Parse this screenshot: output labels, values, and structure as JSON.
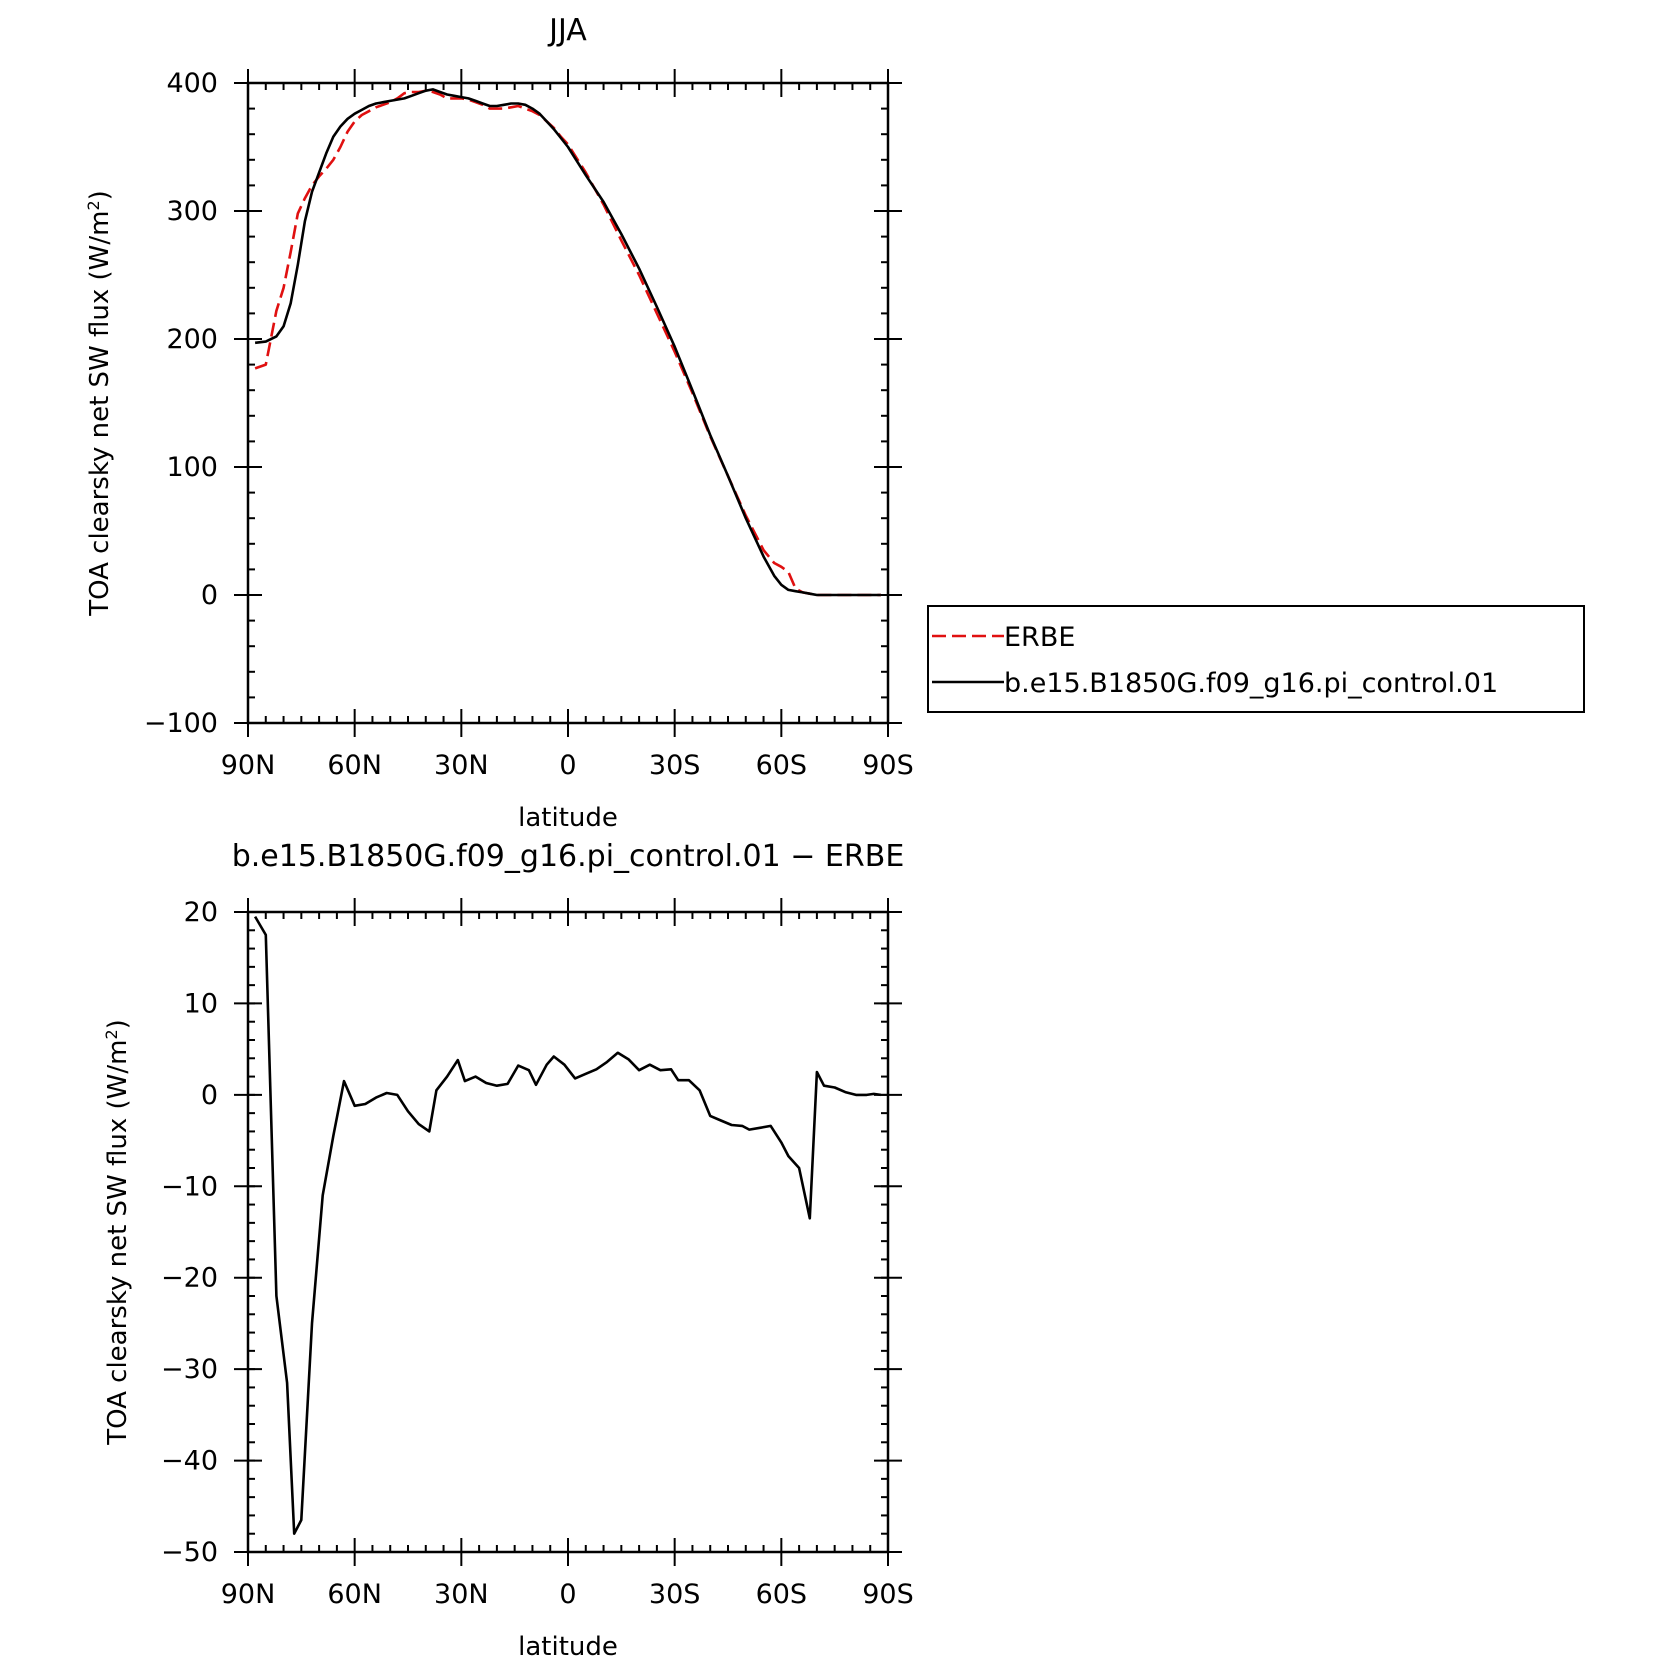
{
  "chart_data": [
    {
      "type": "line",
      "title": "JJA",
      "xlabel": "latitude",
      "ylabel_main": "TOA clearsky net SW flux (W/m",
      "ylabel_sup": "2",
      "ylabel_end": ")",
      "xlim": [
        90,
        -90
      ],
      "ylim": [
        -100,
        400
      ],
      "xticks": [
        {
          "value": 90,
          "label": "90N"
        },
        {
          "value": 60,
          "label": "60N"
        },
        {
          "value": 30,
          "label": "30N"
        },
        {
          "value": 0,
          "label": "0"
        },
        {
          "value": -30,
          "label": "30S"
        },
        {
          "value": -60,
          "label": "60S"
        },
        {
          "value": -90,
          "label": "90S"
        }
      ],
      "yticks": [
        {
          "value": 400,
          "label": "400"
        },
        {
          "value": 300,
          "label": "300"
        },
        {
          "value": 200,
          "label": "200"
        },
        {
          "value": 100,
          "label": "100"
        },
        {
          "value": 0,
          "label": "0"
        },
        {
          "value": -100,
          "label": "−100"
        }
      ],
      "legend": "right",
      "series": [
        {
          "name": "ERBE",
          "color": "#e01010",
          "dash": "dashed",
          "x": [
            88,
            85,
            82,
            80,
            78,
            76,
            74,
            72,
            70,
            68,
            66,
            64,
            62,
            60,
            58,
            56,
            54,
            52,
            50,
            48,
            46,
            44,
            42,
            40,
            38,
            36,
            34,
            32,
            30,
            28,
            26,
            24,
            22,
            20,
            18,
            16,
            14,
            12,
            10,
            8,
            6,
            4,
            2,
            0,
            -5,
            -10,
            -15,
            -20,
            -25,
            -30,
            -35,
            -40,
            -45,
            -50,
            -55,
            -58,
            -60,
            -62,
            -64,
            -66,
            -68,
            -70,
            -75,
            -80,
            -85,
            -88
          ],
          "values": [
            177,
            180,
            222,
            240,
            268,
            298,
            310,
            320,
            327,
            333,
            340,
            350,
            362,
            370,
            375,
            378,
            381,
            383,
            385,
            388,
            392,
            393,
            393,
            394,
            393,
            391,
            388,
            388,
            388,
            387,
            385,
            383,
            380,
            380,
            380,
            381,
            382,
            380,
            378,
            375,
            370,
            365,
            358,
            352,
            330,
            305,
            277,
            250,
            220,
            190,
            158,
            124,
            93,
            62,
            35,
            25,
            22,
            18,
            5,
            2,
            1,
            0,
            0,
            0,
            0,
            0
          ]
        },
        {
          "name": "b.e15.B1850G.f09_g16.pi_control.01",
          "color": "#000000",
          "dash": "solid",
          "x": [
            88,
            85,
            82,
            80,
            78,
            76,
            74,
            72,
            70,
            68,
            66,
            64,
            62,
            60,
            58,
            56,
            54,
            52,
            50,
            48,
            46,
            44,
            42,
            40,
            38,
            36,
            34,
            32,
            30,
            28,
            26,
            24,
            22,
            20,
            18,
            16,
            14,
            12,
            10,
            8,
            6,
            4,
            2,
            0,
            -5,
            -10,
            -15,
            -20,
            -25,
            -30,
            -35,
            -40,
            -45,
            -50,
            -55,
            -58,
            -60,
            -62,
            -64,
            -66,
            -68,
            -70,
            -75,
            -80,
            -85,
            -88
          ],
          "values": [
            197,
            198,
            202,
            210,
            228,
            258,
            292,
            315,
            330,
            345,
            358,
            366,
            372,
            376,
            379,
            382,
            384,
            385,
            386,
            387,
            388,
            390,
            392,
            394,
            395,
            393,
            391,
            390,
            389,
            388,
            386,
            384,
            382,
            382,
            383,
            384,
            384,
            383,
            380,
            376,
            370,
            364,
            357,
            350,
            328,
            307,
            282,
            255,
            225,
            194,
            160,
            125,
            93,
            60,
            30,
            15,
            8,
            4,
            3,
            2,
            1,
            0,
            0,
            0,
            0,
            0
          ]
        }
      ]
    },
    {
      "type": "line",
      "title": "b.e15.B1850G.f09_g16.pi_control.01 − ERBE",
      "xlabel": "latitude",
      "ylabel_main": "TOA clearsky net SW flux (W/m",
      "ylabel_sup": "2",
      "ylabel_end": ")",
      "xlim": [
        90,
        -90
      ],
      "ylim": [
        -50,
        20
      ],
      "xticks": [
        {
          "value": 90,
          "label": "90N"
        },
        {
          "value": 60,
          "label": "60N"
        },
        {
          "value": 30,
          "label": "30N"
        },
        {
          "value": 0,
          "label": "0"
        },
        {
          "value": -30,
          "label": "30S"
        },
        {
          "value": -60,
          "label": "60S"
        },
        {
          "value": -90,
          "label": "90S"
        }
      ],
      "yticks": [
        {
          "value": 20,
          "label": "20"
        },
        {
          "value": 10,
          "label": "10"
        },
        {
          "value": 0,
          "label": "0"
        },
        {
          "value": -10,
          "label": "−10"
        },
        {
          "value": -20,
          "label": "−20"
        },
        {
          "value": -30,
          "label": "−30"
        },
        {
          "value": -40,
          "label": "−40"
        },
        {
          "value": -50,
          "label": "−50"
        }
      ],
      "series": [
        {
          "color": "#000000",
          "dash": "solid",
          "x": [
            88,
            85,
            82,
            79,
            77,
            75,
            72,
            69,
            66,
            63,
            60,
            57,
            54,
            51,
            48,
            45,
            42,
            39,
            37,
            34,
            31,
            29,
            26,
            23,
            20,
            17,
            14,
            11,
            9,
            6,
            4,
            1,
            -2,
            -5,
            -8,
            -11,
            -14,
            -17,
            -20,
            -23,
            -26,
            -29,
            -31,
            -34,
            -37,
            -40,
            -43,
            -46,
            -49,
            -51,
            -54,
            -57,
            -60,
            -62,
            -65,
            -68,
            -70,
            -72,
            -75,
            -78,
            -81,
            -84,
            -86,
            -88
          ],
          "values": [
            19.5,
            17.5,
            -22,
            -31.5,
            -48,
            -46.5,
            -25,
            -11,
            -4.5,
            1.5,
            -1.2,
            -1,
            -0.3,
            0.2,
            0,
            -1.8,
            -3.2,
            -4,
            0.5,
            2,
            3.8,
            1.5,
            2,
            1.3,
            1,
            1.2,
            3.2,
            2.7,
            1.1,
            3.3,
            4.2,
            3.3,
            1.8,
            2.3,
            2.8,
            3.6,
            4.6,
            3.9,
            2.7,
            3.3,
            2.7,
            2.8,
            1.6,
            1.6,
            0.5,
            -2.3,
            -2.8,
            -3.3,
            -3.4,
            -3.8,
            -3.6,
            -3.4,
            -5.2,
            -6.7,
            -8,
            -13.5,
            2.5,
            1,
            0.8,
            0.3,
            0,
            0,
            0.1,
            0
          ]
        }
      ]
    }
  ]
}
